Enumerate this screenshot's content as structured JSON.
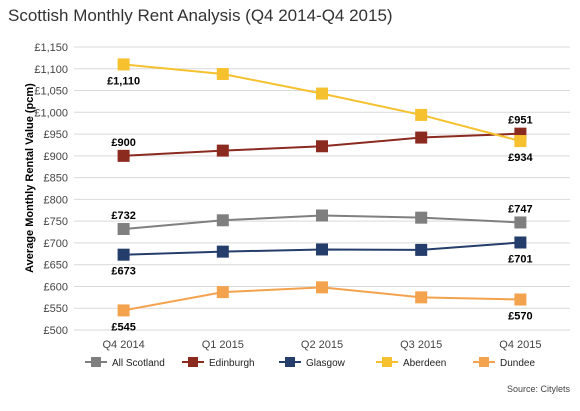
{
  "chart_data": {
    "type": "line",
    "title": "Scottish Monthly Rent Analysis (Q4 2014-Q4 2015)",
    "xlabel": "",
    "ylabel": "Average Monthly Rental Value (pcm)",
    "categories": [
      "Q4 2014",
      "Q1 2015",
      "Q2 2015",
      "Q3 2015",
      "Q4 2015"
    ],
    "ylim": [
      500,
      1150
    ],
    "ystep": 50,
    "ytick_labels": [
      "£500",
      "£550",
      "£600",
      "£650",
      "£700",
      "£750",
      "£800",
      "£850",
      "£900",
      "£950",
      "£1,000",
      "£1,050",
      "£1,100",
      "£1,150"
    ],
    "grid": "horizontal",
    "legend_position": "bottom",
    "source": "Source: Citylets",
    "series": [
      {
        "name": "All Scotland",
        "color": "#7f7f7f",
        "values": [
          732,
          752,
          763,
          758,
          747
        ],
        "labels": [
          {
            "index": 0,
            "text": "£732",
            "side": "above"
          },
          {
            "index": 4,
            "text": "£747",
            "side": "above"
          }
        ]
      },
      {
        "name": "Edinburgh",
        "color": "#8b2a1f",
        "values": [
          900,
          912,
          922,
          942,
          951
        ],
        "labels": [
          {
            "index": 0,
            "text": "£900",
            "side": "above"
          },
          {
            "index": 4,
            "text": "£951",
            "side": "above"
          }
        ]
      },
      {
        "name": "Glasgow",
        "color": "#243d6b",
        "values": [
          673,
          680,
          685,
          684,
          701
        ],
        "labels": [
          {
            "index": 0,
            "text": "£673",
            "side": "below"
          },
          {
            "index": 4,
            "text": "£701",
            "side": "below"
          }
        ]
      },
      {
        "name": "Aberdeen",
        "color": "#f5c12e",
        "values": [
          1110,
          1088,
          1043,
          994,
          934
        ],
        "labels": [
          {
            "index": 0,
            "text": "£1,110",
            "side": "below"
          },
          {
            "index": 4,
            "text": "£934",
            "side": "below"
          }
        ]
      },
      {
        "name": "Dundee",
        "color": "#f3a24e",
        "values": [
          545,
          587,
          598,
          575,
          570
        ],
        "labels": [
          {
            "index": 0,
            "text": "£545",
            "side": "below"
          },
          {
            "index": 4,
            "text": "£570",
            "side": "below"
          }
        ]
      }
    ]
  }
}
